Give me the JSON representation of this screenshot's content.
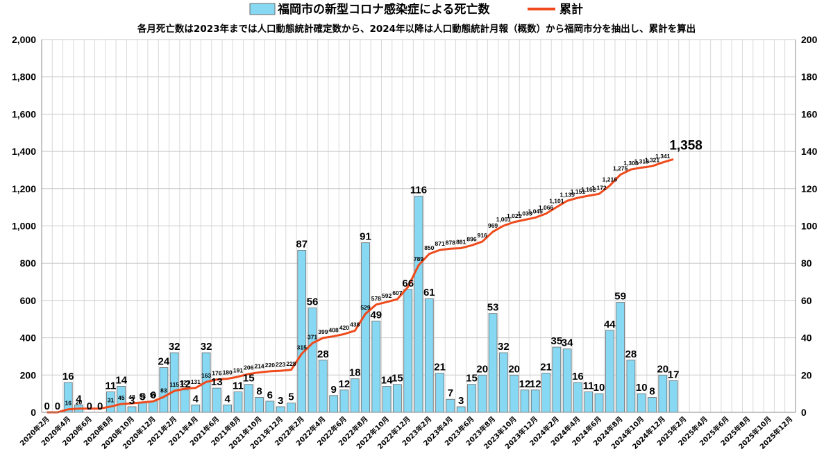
{
  "chart_data": {
    "type": "bar+line",
    "legend": {
      "bar_label": "福岡市の新型コロナ感染症による死亡数",
      "line_label": "累計",
      "bar_color": "#87d8f2",
      "bar_border": "#6a6a6a",
      "line_color": "#ef4a1c"
    },
    "subtitle": "各月死亡数は2023年までは人口動態統計確定数から、2024年以降は人口動態統計月報（概数）から福岡市分を抽出し、累計を算出",
    "left_axis": {
      "min": 0,
      "max": 2000,
      "step": 200,
      "labels": [
        "0",
        "200",
        "400",
        "600",
        "800",
        "1,000",
        "1,200",
        "1,400",
        "1,600",
        "1,800",
        "2,000"
      ]
    },
    "right_axis": {
      "min": 0,
      "max": 200,
      "step": 20,
      "labels": [
        "0",
        "20",
        "40",
        "60",
        "80",
        "100",
        "120",
        "140",
        "160",
        "180",
        "200"
      ]
    },
    "grid": true,
    "x_tick_labels": [
      "2020年2月",
      "2020年4月",
      "2020年6月",
      "2020年8月",
      "2020年10月",
      "2020年12月",
      "2021年2月",
      "2021年4月",
      "2021年6月",
      "2021年8月",
      "2021年10月",
      "2021年12月",
      "2022年2月",
      "2022年4月",
      "2022年6月",
      "2022年8月",
      "2022年10月",
      "2022年12月",
      "2023年2月",
      "2023年4月",
      "2023年6月",
      "2023年8月",
      "2023年10月",
      "2023年12月",
      "2024年2月",
      "2024年4月",
      "2024年6月",
      "2024年8月",
      "2024年10月",
      "2024年12月",
      "2025年2月",
      "2025年4月",
      "2025年6月",
      "2025年8月",
      "2025年10月",
      "2025年12月"
    ],
    "months": [
      "2020-02",
      "2020-03",
      "2020-04",
      "2020-05",
      "2020-06",
      "2020-07",
      "2020-08",
      "2020-09",
      "2020-10",
      "2020-11",
      "2020-12",
      "2021-01",
      "2021-02",
      "2021-03",
      "2021-04",
      "2021-05",
      "2021-06",
      "2021-07",
      "2021-08",
      "2021-09",
      "2021-10",
      "2021-11",
      "2021-12",
      "2022-01",
      "2022-02",
      "2022-03",
      "2022-04",
      "2022-05",
      "2022-06",
      "2022-07",
      "2022-08",
      "2022-09",
      "2022-10",
      "2022-11",
      "2022-12",
      "2023-01",
      "2023-02",
      "2023-03",
      "2023-04",
      "2023-05",
      "2023-06",
      "2023-07",
      "2023-08",
      "2023-09",
      "2023-10",
      "2023-11",
      "2023-12",
      "2024-01",
      "2024-02",
      "2024-03",
      "2024-04",
      "2024-05",
      "2024-06",
      "2024-07",
      "2024-08",
      "2024-09",
      "2024-10",
      "2024-11",
      "2024-12",
      "2025-01",
      "2025-02",
      "2025-03",
      "2025-04",
      "2025-05",
      "2025-06",
      "2025-07",
      "2025-08",
      "2025-09",
      "2025-10",
      "2025-11",
      "2025-12"
    ],
    "monthly_deaths": [
      0,
      0,
      16,
      4,
      0,
      0,
      11,
      14,
      3,
      5,
      6,
      24,
      32,
      12,
      4,
      32,
      13,
      4,
      11,
      15,
      8,
      6,
      3,
      5,
      87,
      56,
      28,
      9,
      12,
      18,
      91,
      49,
      14,
      15,
      66,
      116,
      61,
      21,
      7,
      3,
      15,
      20,
      53,
      32,
      20,
      12,
      12,
      21,
      35,
      34,
      16,
      11,
      10,
      44,
      59,
      28,
      10,
      8,
      20,
      17
    ],
    "monthly_labels": [
      "0",
      "0",
      "16",
      "4",
      "0",
      "0",
      "11",
      "14",
      "3",
      "5",
      "6",
      "24",
      "32",
      "12",
      "4",
      "32",
      "13",
      "4",
      "11",
      "15",
      "8",
      "6",
      "3",
      "5",
      "87",
      "56",
      "28",
      "9",
      "12",
      "18",
      "91",
      "49",
      "14",
      "15",
      "66",
      "116",
      "61",
      "21",
      "7",
      "3",
      "15",
      "20",
      "53",
      "32",
      "20",
      "12",
      "12",
      "21",
      "35",
      "34",
      "16",
      "11",
      "10",
      "44",
      "59",
      "28",
      "10",
      "8",
      "20",
      "17"
    ],
    "cumulative": [
      0,
      0,
      16,
      20,
      20,
      20,
      31,
      45,
      48,
      53,
      59,
      83,
      115,
      127,
      131,
      163,
      176,
      180,
      191,
      206,
      214,
      220,
      223,
      228,
      315,
      371,
      399,
      408,
      420,
      438,
      529,
      578,
      592,
      607,
      673,
      789,
      850,
      871,
      878,
      881,
      896,
      916,
      969,
      1001,
      1021,
      1033,
      1045,
      1066,
      1101,
      1135,
      1151,
      1162,
      1172,
      1216,
      1275,
      1303,
      1313,
      1321,
      1341,
      1358
    ],
    "cumulative_labels": [
      "",
      "",
      "16",
      "20",
      "",
      "",
      "31",
      "45",
      "48",
      "53",
      "59",
      "83",
      "115",
      "127",
      "131",
      "163",
      "176",
      "180",
      "191",
      "206",
      "214",
      "220",
      "223",
      "228",
      "315",
      "371",
      "399",
      "408",
      "420",
      "438",
      "529",
      "578",
      "592",
      "607",
      "",
      "789",
      "850",
      "871",
      "878",
      "881",
      "896",
      "916",
      "969",
      "1,001",
      "1,021",
      "1,033",
      "1,045",
      "1,066",
      "1,101",
      "1,135",
      "1,151",
      "1,162",
      "1,172",
      "1,216",
      "1,275",
      "1,303",
      "1,313",
      "1,321",
      "1,341",
      "1,358"
    ]
  }
}
